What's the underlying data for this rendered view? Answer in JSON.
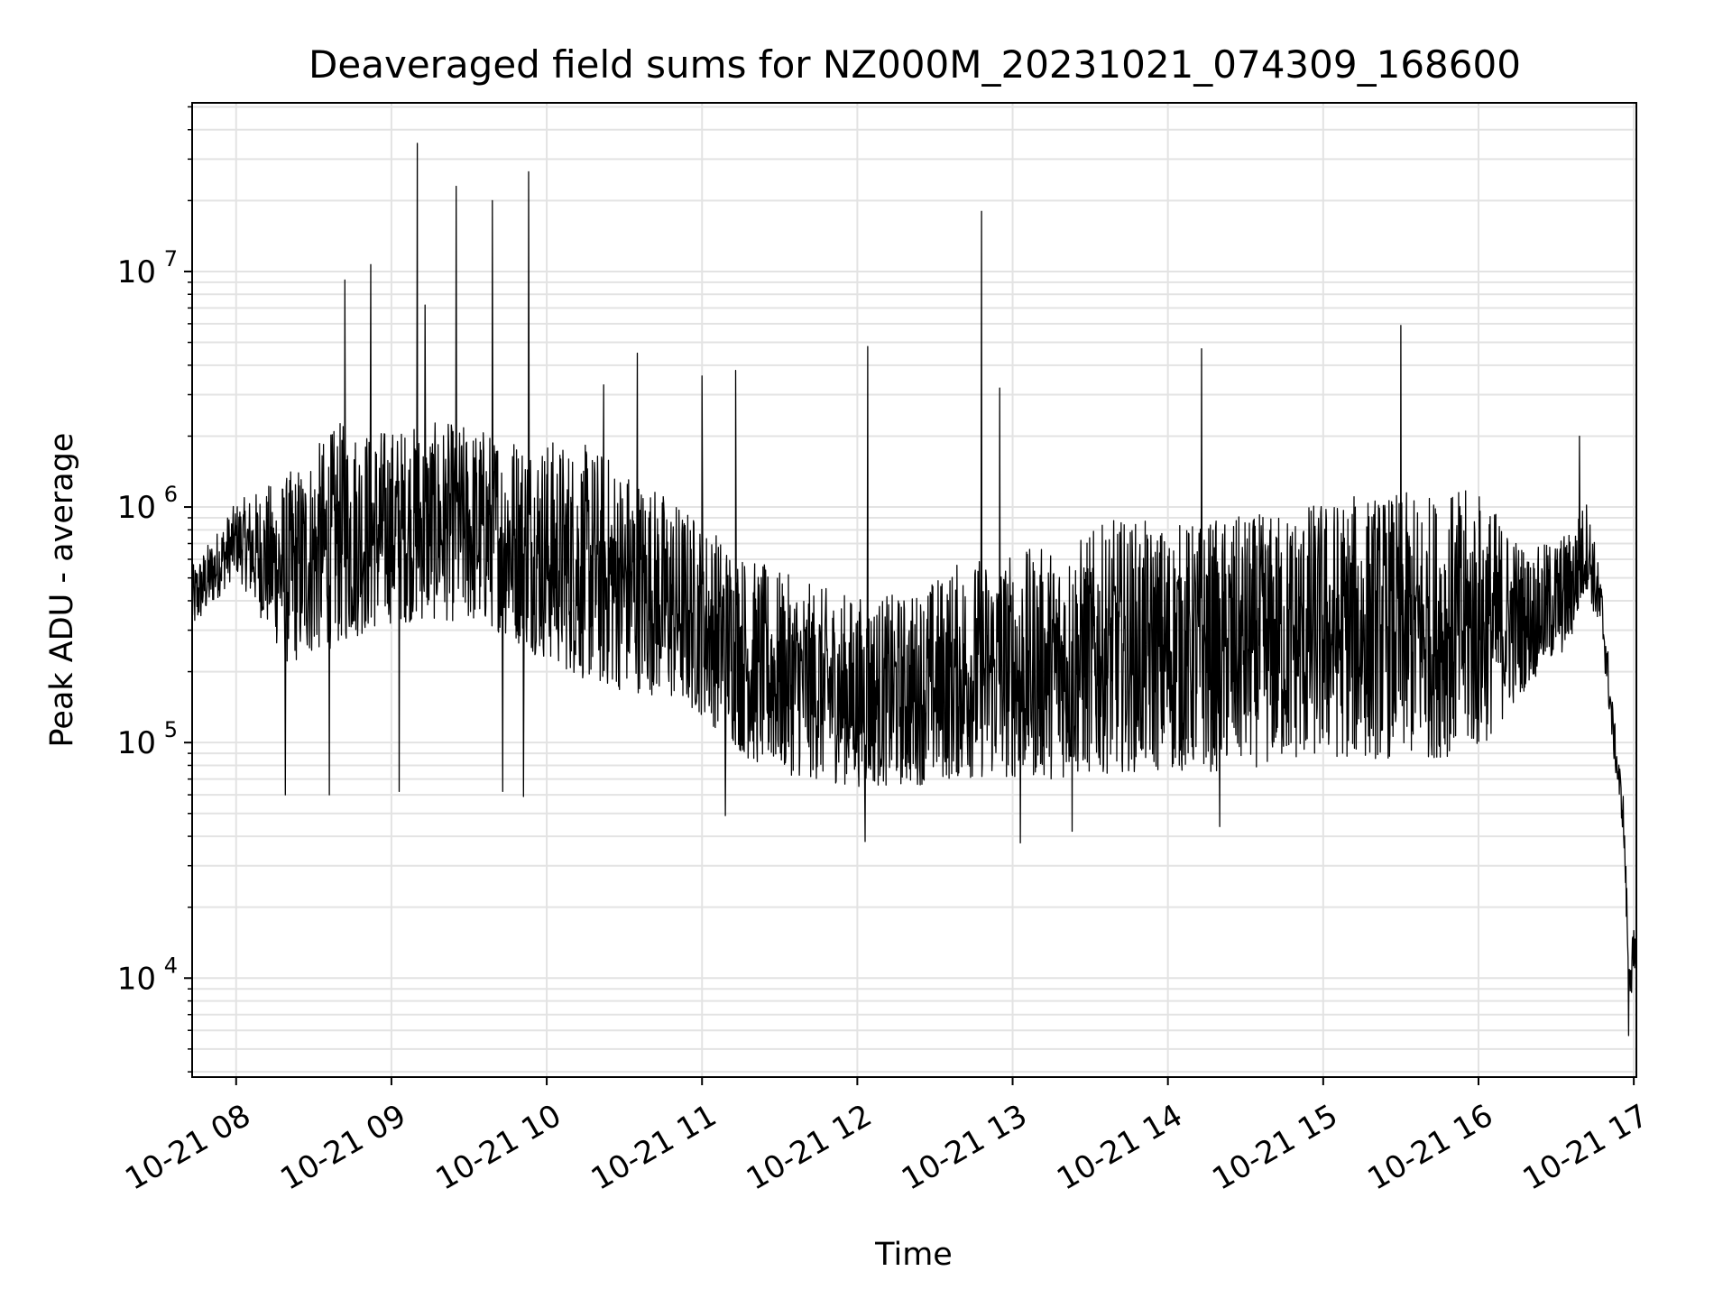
{
  "chart_data": {
    "type": "line",
    "title": "Deaveraged field sums for NZ000M_20231021_074309_168600",
    "xlabel": "Time",
    "ylabel": "Peak ADU - average",
    "yscale": "log",
    "ylim": [
      3800,
      52000000
    ],
    "xlim": [
      "2023-10-21 07:43",
      "2023-10-21 17:01"
    ],
    "grid": true,
    "line_color": "#000000",
    "x_ticks": [
      "10-21 08",
      "10-21 09",
      "10-21 10",
      "10-21 11",
      "10-21 12",
      "10-21 13",
      "10-21 14",
      "10-21 15",
      "10-21 16",
      "10-21 17"
    ],
    "x_tick_times": [
      "2023-10-21 08:00",
      "2023-10-21 09:00",
      "2023-10-21 10:00",
      "2023-10-21 11:00",
      "2023-10-21 12:00",
      "2023-10-21 13:00",
      "2023-10-21 14:00",
      "2023-10-21 15:00",
      "2023-10-21 16:00",
      "2023-10-21 17:00"
    ],
    "y_ticks": [
      {
        "value": 10000,
        "base": "10",
        "exp": "4"
      },
      {
        "value": 100000,
        "base": "10",
        "exp": "5"
      },
      {
        "value": 1000000,
        "base": "10",
        "exp": "6"
      },
      {
        "value": 10000000,
        "base": "10",
        "exp": "7"
      }
    ],
    "series": [
      {
        "envelope": [
          {
            "t": "2023-10-21 07:43",
            "lo": 290000,
            "hi": 560000
          },
          {
            "t": "2023-10-21 08:00",
            "lo": 520000,
            "hi": 1050000
          },
          {
            "t": "2023-10-21 08:20",
            "lo": 210000,
            "hi": 1400000
          },
          {
            "t": "2023-10-21 08:40",
            "lo": 260000,
            "hi": 2300000
          },
          {
            "t": "2023-10-21 09:00",
            "lo": 320000,
            "hi": 2200000
          },
          {
            "t": "2023-10-21 09:20",
            "lo": 330000,
            "hi": 2300000
          },
          {
            "t": "2023-10-21 09:40",
            "lo": 300000,
            "hi": 2200000
          },
          {
            "t": "2023-10-21 10:00",
            "lo": 220000,
            "hi": 2000000
          },
          {
            "t": "2023-10-21 10:20",
            "lo": 170000,
            "hi": 1800000
          },
          {
            "t": "2023-10-21 10:40",
            "lo": 160000,
            "hi": 1300000
          },
          {
            "t": "2023-10-21 11:00",
            "lo": 130000,
            "hi": 900000
          },
          {
            "t": "2023-10-21 11:20",
            "lo": 80000,
            "hi": 600000
          },
          {
            "t": "2023-10-21 11:40",
            "lo": 70000,
            "hi": 480000
          },
          {
            "t": "2023-10-21 12:00",
            "lo": 65000,
            "hi": 420000
          },
          {
            "t": "2023-10-21 12:20",
            "lo": 65000,
            "hi": 430000
          },
          {
            "t": "2023-10-21 12:40",
            "lo": 70000,
            "hi": 600000
          },
          {
            "t": "2023-10-21 13:00",
            "lo": 70000,
            "hi": 650000
          },
          {
            "t": "2023-10-21 13:20",
            "lo": 70000,
            "hi": 700000
          },
          {
            "t": "2023-10-21 13:40",
            "lo": 75000,
            "hi": 900000
          },
          {
            "t": "2023-10-21 14:00",
            "lo": 75000,
            "hi": 850000
          },
          {
            "t": "2023-10-21 14:20",
            "lo": 75000,
            "hi": 900000
          },
          {
            "t": "2023-10-21 14:40",
            "lo": 80000,
            "hi": 950000
          },
          {
            "t": "2023-10-21 15:00",
            "lo": 85000,
            "hi": 1100000
          },
          {
            "t": "2023-10-21 15:20",
            "lo": 85000,
            "hi": 1150000
          },
          {
            "t": "2023-10-21 15:40",
            "lo": 85000,
            "hi": 1150000
          },
          {
            "t": "2023-10-21 16:00",
            "lo": 90000,
            "hi": 1200000
          },
          {
            "t": "2023-10-21 16:20",
            "lo": 180000,
            "hi": 650000
          },
          {
            "t": "2023-10-21 16:35",
            "lo": 250000,
            "hi": 800000
          },
          {
            "t": "2023-10-21 16:42",
            "lo": 450000,
            "hi": 1100000
          },
          {
            "t": "2023-10-21 16:48",
            "lo": 250000,
            "hi": 450000
          },
          {
            "t": "2023-10-21 16:52",
            "lo": 90000,
            "hi": 140000
          },
          {
            "t": "2023-10-21 16:56",
            "lo": 40000,
            "hi": 60000
          },
          {
            "t": "2023-10-21 16:58",
            "lo": 9000,
            "hi": 15000
          },
          {
            "t": "2023-10-21 17:00",
            "lo": 8000,
            "hi": 16000
          },
          {
            "t": "2023-10-21 17:01",
            "lo": 10000,
            "hi": 14000
          }
        ],
        "spikes": [
          {
            "t": "2023-10-21 08:42",
            "value": 9200000
          },
          {
            "t": "2023-10-21 08:52",
            "value": 10700000
          },
          {
            "t": "2023-10-21 09:10",
            "value": 35000000
          },
          {
            "t": "2023-10-21 09:13",
            "value": 7200000
          },
          {
            "t": "2023-10-21 09:25",
            "value": 23000000
          },
          {
            "t": "2023-10-21 09:39",
            "value": 20000000
          },
          {
            "t": "2023-10-21 09:53",
            "value": 26500000
          },
          {
            "t": "2023-10-21 10:22",
            "value": 3300000
          },
          {
            "t": "2023-10-21 10:35",
            "value": 4500000
          },
          {
            "t": "2023-10-21 11:00",
            "value": 3600000
          },
          {
            "t": "2023-10-21 11:13",
            "value": 3800000
          },
          {
            "t": "2023-10-21 12:04",
            "value": 4800000
          },
          {
            "t": "2023-10-21 12:48",
            "value": 18000000
          },
          {
            "t": "2023-10-21 12:55",
            "value": 3200000
          },
          {
            "t": "2023-10-21 14:13",
            "value": 4700000
          },
          {
            "t": "2023-10-21 15:30",
            "value": 5900000
          },
          {
            "t": "2023-10-21 16:39",
            "value": 2000000
          },
          {
            "t": "2023-10-21 08:36",
            "value": 60000
          },
          {
            "t": "2023-10-21 08:19",
            "value": 60000
          },
          {
            "t": "2023-10-21 09:03",
            "value": 62000
          },
          {
            "t": "2023-10-21 09:43",
            "value": 62000
          },
          {
            "t": "2023-10-21 09:51",
            "value": 59000
          },
          {
            "t": "2023-10-21 11:09",
            "value": 49000
          },
          {
            "t": "2023-10-21 12:03",
            "value": 38000
          },
          {
            "t": "2023-10-21 13:03",
            "value": 37500
          },
          {
            "t": "2023-10-21 13:23",
            "value": 42000
          },
          {
            "t": "2023-10-21 14:20",
            "value": 44000
          },
          {
            "t": "2023-10-21 16:58",
            "value": 5700
          }
        ]
      }
    ]
  }
}
